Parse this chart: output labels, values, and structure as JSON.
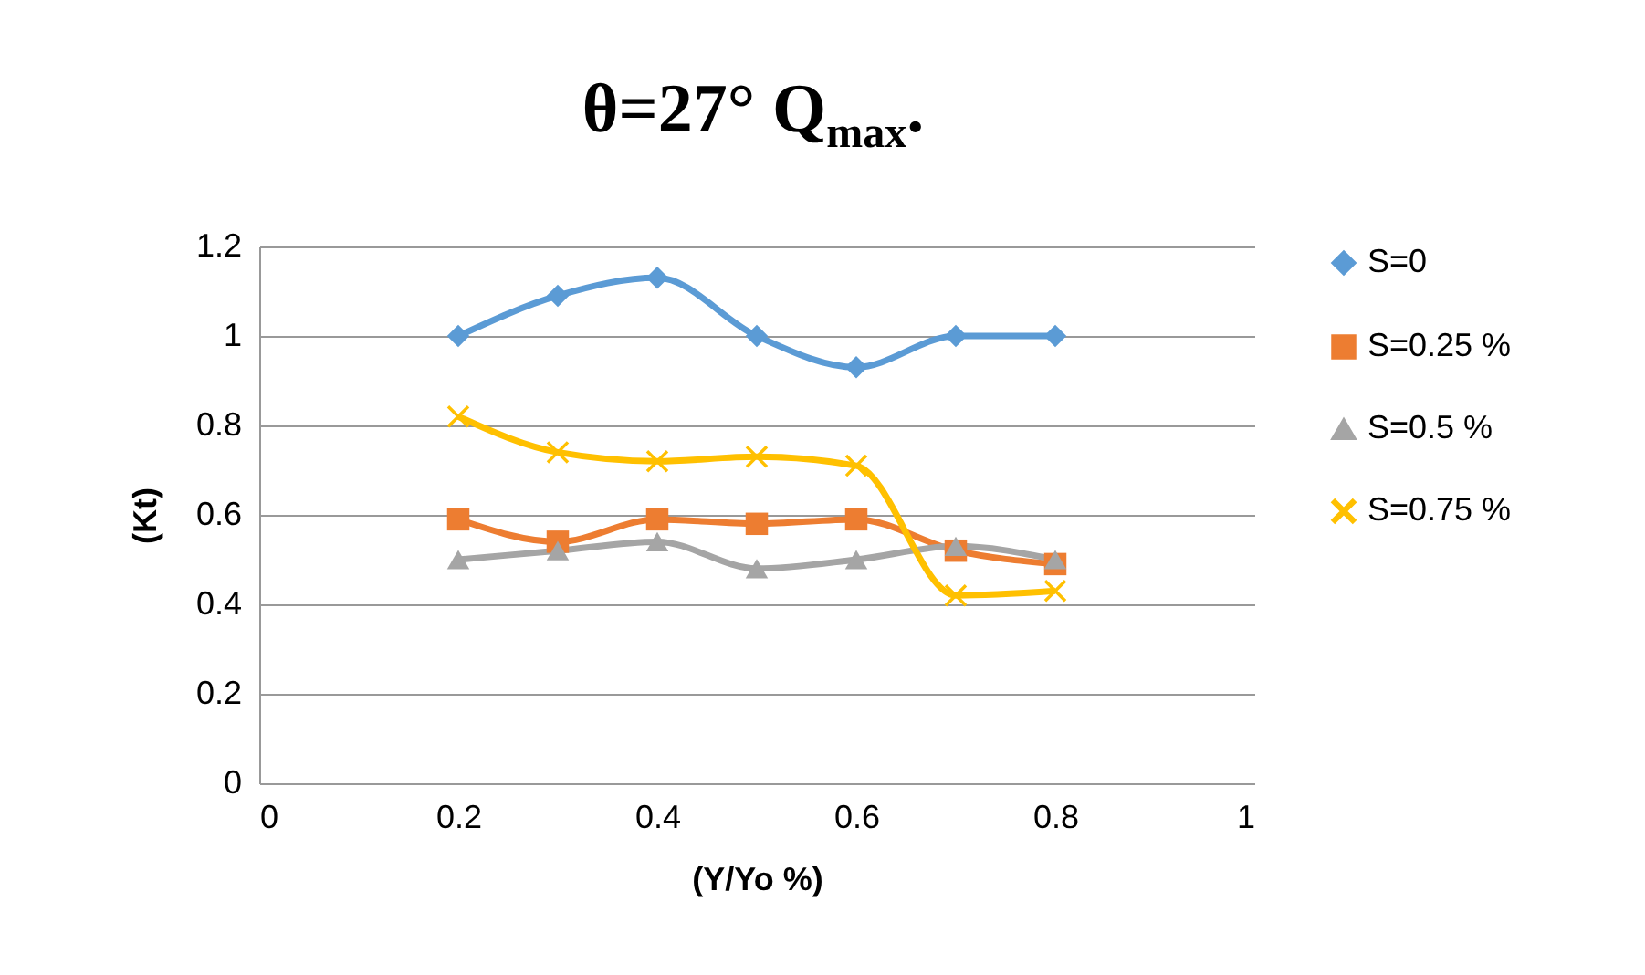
{
  "chart_data": {
    "type": "line",
    "title": "θ=27°  Q$_{max}$.",
    "xlabel": "(Y/Yo %)",
    "ylabel": "(Kt)",
    "x": [
      0.2,
      0.3,
      0.4,
      0.5,
      0.6,
      0.7,
      0.8
    ],
    "series": [
      {
        "name": "S=0",
        "color": "#5b9bd5",
        "marker": "diamond",
        "values": [
          1.0,
          1.09,
          1.13,
          1.0,
          0.93,
          1.0,
          1.0
        ]
      },
      {
        "name": "S=0.25 %",
        "color": "#ed7d31",
        "marker": "square",
        "values": [
          0.59,
          0.54,
          0.59,
          0.58,
          0.59,
          0.52,
          0.49
        ]
      },
      {
        "name": "S=0.5 %",
        "color": "#a5a5a5",
        "marker": "triangle",
        "values": [
          0.5,
          0.52,
          0.54,
          0.48,
          0.5,
          0.53,
          0.5
        ]
      },
      {
        "name": "S=0.75 %",
        "color": "#ffc000",
        "marker": "cross",
        "values": [
          0.82,
          0.74,
          0.72,
          0.73,
          0.71,
          0.42,
          0.43
        ]
      }
    ],
    "xlim": [
      0,
      1
    ],
    "xticks": [
      0,
      0.2,
      0.4,
      0.6,
      0.8,
      1
    ],
    "ylim": [
      0,
      1.2
    ],
    "yticks": [
      0,
      0.2,
      0.4,
      0.6,
      0.8,
      1,
      1.2
    ],
    "grid": "y",
    "legend": "right",
    "line_style": "solid"
  }
}
